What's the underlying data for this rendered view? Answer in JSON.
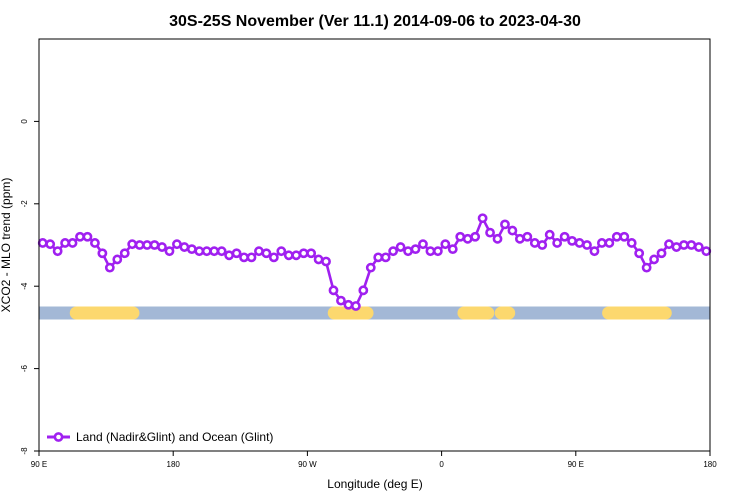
{
  "chart_data": {
    "type": "line",
    "title": "30S-25S November (Ver 11.1)   2014-09-06 to 2023-04-30",
    "xlabel": "Longitude (deg E)",
    "ylabel": "XCO2 - MLO trend (ppm)",
    "xlim": [
      90,
      540
    ],
    "ylim": [
      -8,
      2
    ],
    "x_ticks": [
      {
        "value": 90,
        "label": "90 E"
      },
      {
        "value": 180,
        "label": "180"
      },
      {
        "value": 270,
        "label": "90 W"
      },
      {
        "value": 360,
        "label": "0"
      },
      {
        "value": 450,
        "label": "90 E"
      },
      {
        "value": 540,
        "label": "180"
      }
    ],
    "y_ticks": [
      {
        "value": 0,
        "label": "0"
      },
      {
        "value": -2,
        "label": "-2"
      },
      {
        "value": -4,
        "label": "-4"
      },
      {
        "value": -6,
        "label": "-6"
      },
      {
        "value": -8,
        "label": "-8"
      }
    ],
    "grid": false,
    "legend_position": "bottom-left",
    "series": [
      {
        "name": "Land (Nadir&Glint) and Ocean (Glint)",
        "color": "#a020f0",
        "x": [
          92.5,
          97.5,
          102.5,
          107.5,
          112.5,
          117.5,
          122.5,
          127.5,
          132.5,
          137.5,
          142.5,
          147.5,
          152.5,
          157.5,
          162.5,
          167.5,
          172.5,
          177.5,
          182.5,
          187.5,
          192.5,
          197.5,
          202.5,
          207.5,
          212.5,
          217.5,
          222.5,
          227.5,
          232.5,
          237.5,
          242.5,
          247.5,
          252.5,
          257.5,
          262.5,
          267.5,
          272.5,
          277.5,
          282.5,
          287.5,
          292.5,
          297.5,
          302.5,
          307.5,
          312.5,
          317.5,
          322.5,
          327.5,
          332.5,
          337.5,
          342.5,
          347.5,
          352.5,
          357.5,
          362.5,
          367.5,
          372.5,
          377.5,
          382.5,
          387.5,
          392.5,
          397.5,
          402.5,
          407.5,
          412.5,
          417.5,
          422.5,
          427.5,
          432.5,
          437.5,
          442.5,
          447.5,
          452.5,
          457.5,
          462.5,
          467.5,
          472.5,
          477.5,
          482.5,
          487.5,
          492.5,
          497.5,
          502.5,
          507.5,
          512.5,
          517.5,
          522.5,
          527.5,
          532.5,
          537.5
        ],
        "y": [
          -2.95,
          -2.98,
          -3.15,
          -2.95,
          -2.95,
          -2.8,
          -2.8,
          -2.95,
          -3.2,
          -3.55,
          -3.35,
          -3.2,
          -2.98,
          -3.0,
          -3.0,
          -3.0,
          -3.05,
          -3.15,
          -2.98,
          -3.05,
          -3.1,
          -3.15,
          -3.15,
          -3.15,
          -3.15,
          -3.25,
          -3.2,
          -3.3,
          -3.3,
          -3.15,
          -3.2,
          -3.3,
          -3.15,
          -3.25,
          -3.25,
          -3.2,
          -3.2,
          -3.35,
          -3.4,
          -4.1,
          -4.35,
          -4.45,
          -4.48,
          -4.1,
          -3.55,
          -3.3,
          -3.3,
          -3.15,
          -3.05,
          -3.15,
          -3.1,
          -2.98,
          -3.15,
          -3.15,
          -2.98,
          -3.1,
          -2.8,
          -2.85,
          -2.8,
          -2.35,
          -2.7,
          -2.85,
          -2.5,
          -2.65,
          -2.85,
          -2.8,
          -2.95,
          -3.0,
          -2.75,
          -2.95,
          -2.8,
          -2.9,
          -2.95,
          -3.0,
          -3.15,
          -2.95,
          -2.95,
          -2.8,
          -2.8,
          -2.95,
          -3.2,
          -3.55,
          -3.35,
          -3.2,
          -2.98,
          -3.05,
          -3.0,
          -3.0,
          -3.05,
          -3.15
        ]
      }
    ],
    "surface_band": {
      "y": -4.65,
      "ocean_color": "#a3b8d6",
      "land_color": "#fcd86e",
      "land_segments": [
        [
          115,
          153
        ],
        [
          288,
          310
        ],
        [
          375,
          391
        ],
        [
          400,
          405
        ],
        [
          472,
          510
        ]
      ]
    }
  }
}
